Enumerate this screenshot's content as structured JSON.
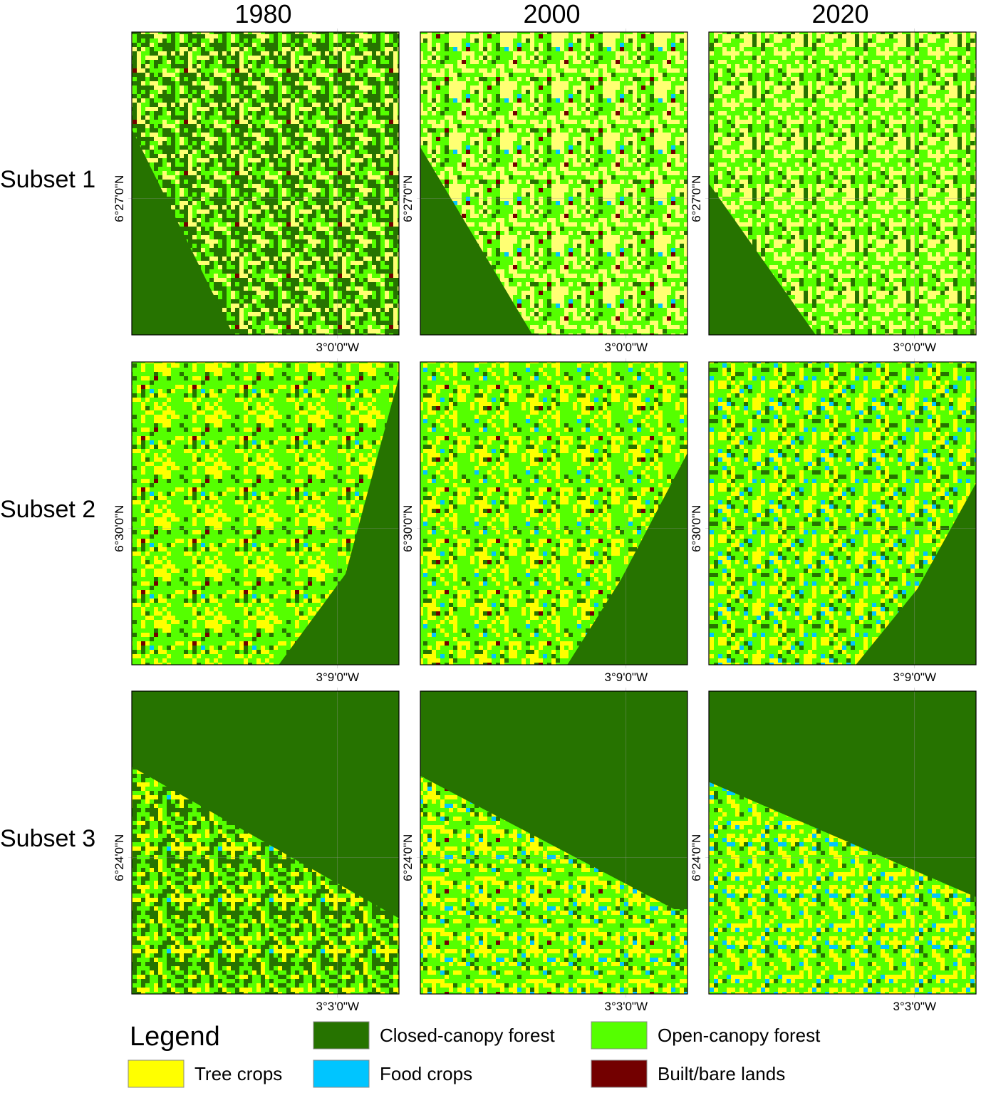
{
  "columns": [
    "1980",
    "2000",
    "2020"
  ],
  "rows": [
    {
      "label": "Subset 1",
      "lat": "6°27'0\"N",
      "lon": "3°0'0\"W"
    },
    {
      "label": "Subset 2",
      "lat": "6°30'0\"N",
      "lon": "3°9'0\"W"
    },
    {
      "label": "Subset 3",
      "lat": "6°24'0\"N",
      "lon": "3°3'0\"W"
    }
  ],
  "legend": {
    "title": "Legend",
    "items": [
      {
        "label": "Closed-canopy forest",
        "color": "#267300"
      },
      {
        "label": "Open-canopy forest",
        "color": "#55ff00"
      },
      {
        "label": "Tree crops",
        "color": "#ffff00"
      },
      {
        "label": "Food crops",
        "color": "#00c5ff"
      },
      {
        "label": "Built/bare lands",
        "color": "#730000"
      }
    ]
  }
}
